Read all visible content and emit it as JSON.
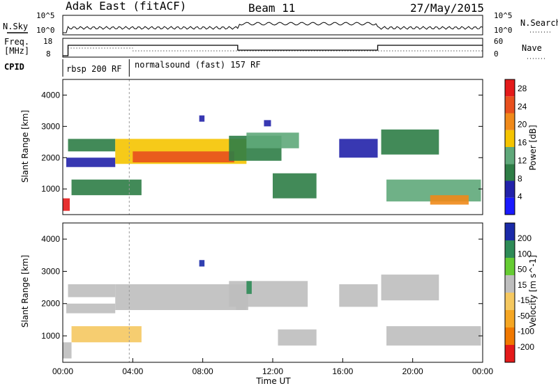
{
  "header": {
    "station": "Adak East (fitACF)",
    "beam": "Beam 11",
    "date": "27/May/2015"
  },
  "noise_panel": {
    "left_label": "N.Sky",
    "right_label": "N.Search",
    "ticks": [
      "10^5",
      "10^0"
    ]
  },
  "freq_panel": {
    "left_label_1": "Freq.",
    "left_label_2": "[MHz]",
    "left_ticks": [
      "18",
      "8"
    ],
    "right_label": "Nave",
    "right_ticks": [
      "60",
      "0"
    ]
  },
  "cpid_panel": {
    "label": "CPID",
    "modes": [
      "rbsp 200 RF",
      "normalsound (fast) 157 RF"
    ]
  },
  "colors": {
    "power": [
      "#1a1aff",
      "#2222aa",
      "#2e7d46",
      "#5fa87a",
      "#f5c400",
      "#f08a1a",
      "#e8501e",
      "#e41a1a"
    ],
    "velocity": [
      "#e41a1a",
      "#f07800",
      "#f5a623",
      "#f5c860",
      "#bebebe",
      "#66cc33",
      "#2e8b57",
      "#1a2aa8"
    ]
  },
  "chart_data": [
    {
      "type": "heatmap",
      "quantity": "Power",
      "ylabel": "Slant Range [km]",
      "ylim": [
        180,
        4500
      ],
      "yticks": [
        "1000",
        "2000",
        "3000",
        "4000"
      ],
      "colorbar_label": "Power [dB]",
      "colorbar_ticks": [
        "4",
        "8",
        "12",
        "16",
        "20",
        "24",
        "28"
      ],
      "colorbar_range": [
        0,
        30
      ],
      "regions": [
        {
          "start": 0.0,
          "end": 0.4,
          "range": [
            300,
            700
          ],
          "value": 27
        },
        {
          "start": 0.3,
          "end": 3.0,
          "range": [
            2200,
            2600
          ],
          "value": 8
        },
        {
          "start": 0.2,
          "end": 3.0,
          "range": [
            1700,
            2000
          ],
          "value": 6
        },
        {
          "start": 0.5,
          "end": 4.5,
          "range": [
            800,
            1300
          ],
          "value": 8
        },
        {
          "start": 3.0,
          "end": 10.5,
          "range": [
            1800,
            2600
          ],
          "value": 18
        },
        {
          "start": 4.0,
          "end": 9.8,
          "range": [
            1850,
            2200
          ],
          "value": 25
        },
        {
          "start": 9.5,
          "end": 12.5,
          "range": [
            1900,
            2700
          ],
          "value": 10
        },
        {
          "start": 10.5,
          "end": 13.5,
          "range": [
            2300,
            2800
          ],
          "value": 14
        },
        {
          "start": 12.0,
          "end": 14.5,
          "range": [
            700,
            1500
          ],
          "value": 10
        },
        {
          "start": 15.8,
          "end": 18.0,
          "range": [
            2000,
            2600
          ],
          "value": 7
        },
        {
          "start": 18.2,
          "end": 21.5,
          "range": [
            2100,
            2900
          ],
          "value": 10
        },
        {
          "start": 18.5,
          "end": 23.9,
          "range": [
            600,
            1300
          ],
          "value": 12
        },
        {
          "start": 21.0,
          "end": 23.2,
          "range": [
            500,
            800
          ],
          "value": 22
        },
        {
          "start": 7.8,
          "end": 8.1,
          "range": [
            3150,
            3350
          ],
          "value": 6
        },
        {
          "start": 11.5,
          "end": 11.9,
          "range": [
            3000,
            3200
          ],
          "value": 6
        }
      ]
    },
    {
      "type": "heatmap",
      "quantity": "Velocity",
      "ylabel": "Slant Range [km]",
      "ylim": [
        180,
        4500
      ],
      "yticks": [
        "1000",
        "2000",
        "3000",
        "4000"
      ],
      "colorbar_label": "Velocity [m s^-1]",
      "colorbar_ticks": [
        "200",
        "100",
        "50",
        "15",
        "-15",
        "-50",
        "-100",
        "-200"
      ],
      "colorbar_range": [
        -250,
        250
      ],
      "regions": [
        {
          "start": 0.3,
          "end": 3.0,
          "range": [
            2200,
            2600
          ],
          "value": 0
        },
        {
          "start": 0.2,
          "end": 3.0,
          "range": [
            1700,
            2000
          ],
          "value": 0
        },
        {
          "start": 0.0,
          "end": 0.5,
          "range": [
            300,
            800
          ],
          "value": 0
        },
        {
          "start": 0.5,
          "end": 4.5,
          "range": [
            800,
            1300
          ],
          "value": -5
        },
        {
          "start": 3.0,
          "end": 10.5,
          "range": [
            1800,
            2600
          ],
          "value": 0
        },
        {
          "start": 9.5,
          "end": 14.0,
          "range": [
            1900,
            2700
          ],
          "value": 0
        },
        {
          "start": 9.9,
          "end": 10.6,
          "range": [
            1800,
            2300
          ],
          "value": 40
        },
        {
          "start": 12.3,
          "end": 14.5,
          "range": [
            700,
            1200
          ],
          "value": 40
        },
        {
          "start": 15.8,
          "end": 18.0,
          "range": [
            1900,
            2600
          ],
          "value": 0
        },
        {
          "start": 18.2,
          "end": 21.5,
          "range": [
            2100,
            2900
          ],
          "value": 0
        },
        {
          "start": 18.5,
          "end": 23.9,
          "range": [
            700,
            1300
          ],
          "value": 0
        },
        {
          "start": 7.8,
          "end": 8.1,
          "range": [
            3150,
            3350
          ],
          "value": 220
        },
        {
          "start": 10.5,
          "end": 10.8,
          "range": [
            2300,
            2700
          ],
          "value": 180
        }
      ]
    }
  ],
  "time_axis": {
    "label": "Time UT",
    "ticks": [
      "00:00",
      "04:00",
      "08:00",
      "12:00",
      "16:00",
      "20:00",
      "00:00"
    ]
  }
}
